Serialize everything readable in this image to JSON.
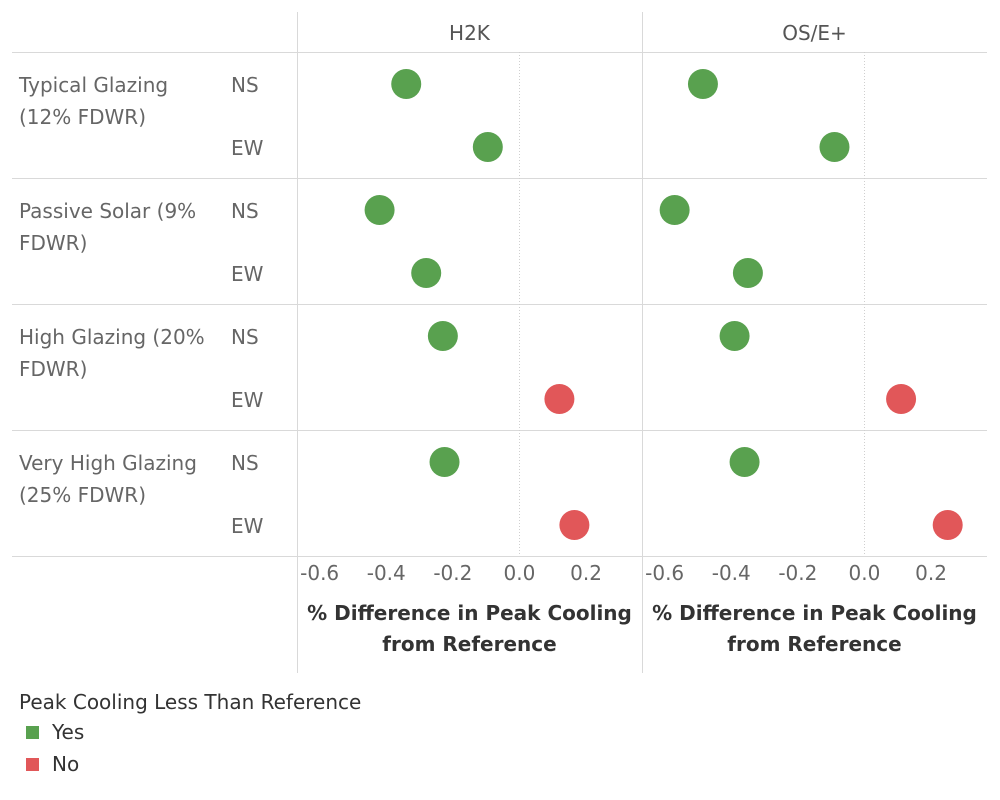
{
  "chart_data": {
    "type": "scatter",
    "panels": [
      {
        "name": "H2K",
        "xlabel": "% Difference in Peak Cooling from Reference",
        "xlabel_lines": [
          "% Difference in Peak Cooling",
          "from Reference"
        ],
        "xlim": [
          -0.65,
          0.35
        ],
        "xticks": [
          -0.6,
          -0.4,
          -0.2,
          0.0,
          0.2
        ],
        "xtick_labels": [
          "-0.6",
          "-0.4",
          "-0.2",
          "0.0",
          "0.2"
        ],
        "points": [
          {
            "group": 0,
            "orientation": 0,
            "value": -0.34,
            "less_than_reference": "Yes"
          },
          {
            "group": 0,
            "orientation": 1,
            "value": -0.095,
            "less_than_reference": "Yes"
          },
          {
            "group": 1,
            "orientation": 0,
            "value": -0.42,
            "less_than_reference": "Yes"
          },
          {
            "group": 1,
            "orientation": 1,
            "value": -0.28,
            "less_than_reference": "Yes"
          },
          {
            "group": 2,
            "orientation": 0,
            "value": -0.23,
            "less_than_reference": "Yes"
          },
          {
            "group": 2,
            "orientation": 1,
            "value": 0.12,
            "less_than_reference": "No"
          },
          {
            "group": 3,
            "orientation": 0,
            "value": -0.225,
            "less_than_reference": "Yes"
          },
          {
            "group": 3,
            "orientation": 1,
            "value": 0.165,
            "less_than_reference": "No"
          }
        ]
      },
      {
        "name": "OS/E+",
        "xlabel": "% Difference in Peak Cooling from Reference",
        "xlabel_lines": [
          "% Difference in Peak Cooling",
          "from Reference"
        ],
        "xlim": [
          -0.65,
          0.35
        ],
        "xticks": [
          -0.6,
          -0.4,
          -0.2,
          0.0,
          0.2
        ],
        "xtick_labels": [
          "-0.6",
          "-0.4",
          "-0.2",
          "0.0",
          "0.2"
        ],
        "points": [
          {
            "group": 0,
            "orientation": 0,
            "value": -0.485,
            "less_than_reference": "Yes"
          },
          {
            "group": 0,
            "orientation": 1,
            "value": -0.09,
            "less_than_reference": "Yes"
          },
          {
            "group": 1,
            "orientation": 0,
            "value": -0.57,
            "less_than_reference": "Yes"
          },
          {
            "group": 1,
            "orientation": 1,
            "value": -0.35,
            "less_than_reference": "Yes"
          },
          {
            "group": 2,
            "orientation": 0,
            "value": -0.39,
            "less_than_reference": "Yes"
          },
          {
            "group": 2,
            "orientation": 1,
            "value": 0.11,
            "less_than_reference": "No"
          },
          {
            "group": 3,
            "orientation": 0,
            "value": -0.36,
            "less_than_reference": "Yes"
          },
          {
            "group": 3,
            "orientation": 1,
            "value": 0.25,
            "less_than_reference": "No"
          }
        ]
      }
    ],
    "row_groups": [
      {
        "label": "Typical Glazing (12% FDWR)",
        "label_lines": [
          "Typical Glazing",
          "(12% FDWR)"
        ]
      },
      {
        "label": "Passive Solar (9% FDWR)",
        "label_lines": [
          "Passive Solar (9%",
          "FDWR)"
        ]
      },
      {
        "label": "High Glazing (20% FDWR)",
        "label_lines": [
          "High Glazing (20%",
          "FDWR)"
        ]
      },
      {
        "label": "Very High Glazing (25% FDWR)",
        "label_lines": [
          "Very High Glazing",
          "(25% FDWR)"
        ]
      }
    ],
    "orientations": [
      "NS",
      "EW"
    ],
    "legend": {
      "title": "Peak Cooling Less Than Reference",
      "position": "bottom-left",
      "items": [
        {
          "label": "Yes",
          "color": "#59a14f"
        },
        {
          "label": "No",
          "color": "#e15759"
        }
      ]
    },
    "grid": false,
    "zero_reference_line": true
  }
}
